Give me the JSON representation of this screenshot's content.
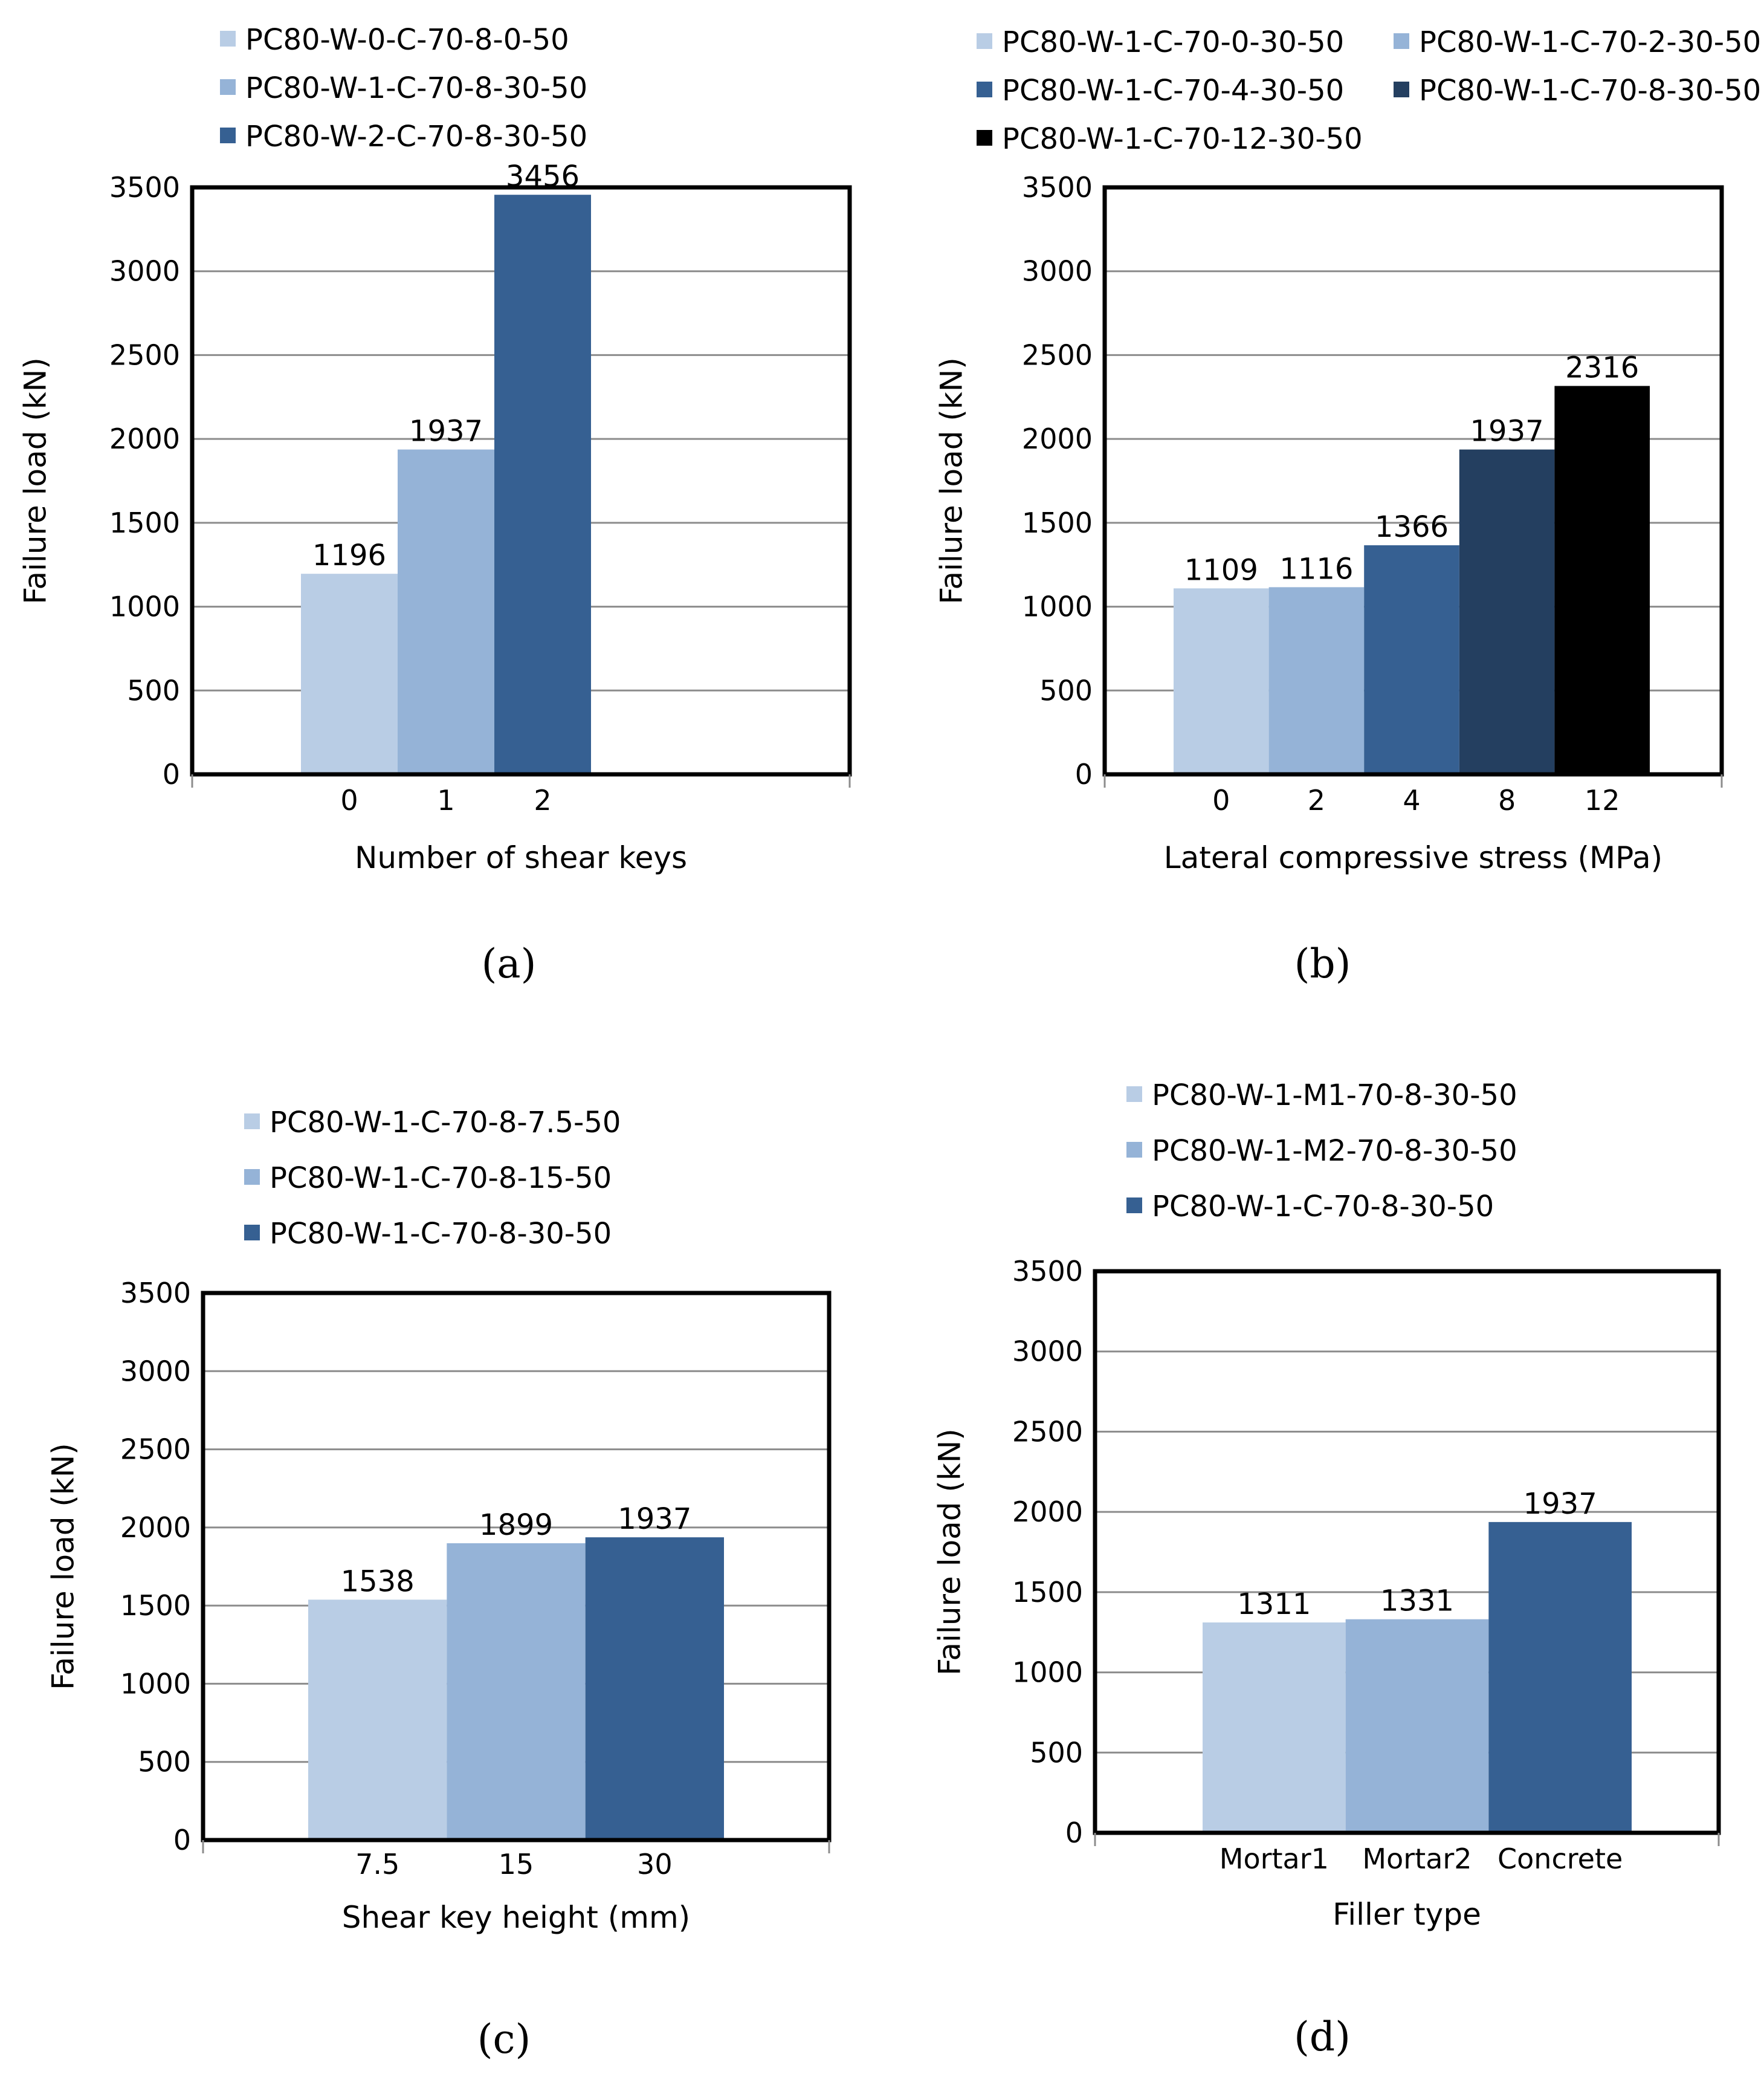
{
  "chart_data": [
    {
      "panel": "a",
      "type": "bar",
      "caption": "(a)",
      "xlabel": "Number of shear keys",
      "ylabel": "Failure load (kN)",
      "ylim": [
        0,
        3500
      ],
      "yticks": [
        0,
        500,
        1000,
        1500,
        2000,
        2500,
        3000,
        3500
      ],
      "categories": [
        "0",
        "1",
        "2"
      ],
      "values": [
        1196,
        1937,
        3456
      ],
      "value_labels": [
        "1196",
        "1937",
        "3456"
      ],
      "legend": [
        "PC80-W-0-C-70-8-0-50",
        "PC80-W-1-C-70-8-30-50",
        "PC80-W-2-C-70-8-30-50"
      ],
      "colors": [
        "#b9cde5",
        "#95b3d7",
        "#366092"
      ],
      "grid": true,
      "legend_position": "top"
    },
    {
      "panel": "b",
      "type": "bar",
      "caption": "(b)",
      "xlabel": "Lateral compressive stress (MPa)",
      "ylabel": "Failure load (kN)",
      "ylim": [
        0,
        3500
      ],
      "yticks": [
        0,
        500,
        1000,
        1500,
        2000,
        2500,
        3000,
        3500
      ],
      "categories": [
        "0",
        "2",
        "4",
        "8",
        "12"
      ],
      "values": [
        1109,
        1116,
        1366,
        1937,
        2316
      ],
      "value_labels": [
        "1109",
        "1116",
        "1366",
        "1937",
        "2316"
      ],
      "legend": [
        "PC80-W-1-C-70-0-30-50",
        "PC80-W-1-C-70-2-30-50",
        "PC80-W-1-C-70-4-30-50",
        "PC80-W-1-C-70-8-30-50",
        "PC80-W-1-C-70-12-30-50"
      ],
      "colors": [
        "#b9cde5",
        "#95b3d7",
        "#366092",
        "#243f60",
        "#000000"
      ],
      "grid": true,
      "legend_position": "top"
    },
    {
      "panel": "c",
      "type": "bar",
      "caption": "(c)",
      "xlabel": "Shear key height (mm)",
      "ylabel": "Failure load (kN)",
      "ylim": [
        0,
        3500
      ],
      "yticks": [
        0,
        500,
        1000,
        1500,
        2000,
        2500,
        3000,
        3500
      ],
      "categories": [
        "7.5",
        "15",
        "30"
      ],
      "values": [
        1538,
        1899,
        1937
      ],
      "value_labels": [
        "1538",
        "1899",
        "1937"
      ],
      "legend": [
        "PC80-W-1-C-70-8-7.5-50",
        "PC80-W-1-C-70-8-15-50",
        "PC80-W-1-C-70-8-30-50"
      ],
      "colors": [
        "#b9cde5",
        "#95b3d7",
        "#366092"
      ],
      "grid": true,
      "legend_position": "top"
    },
    {
      "panel": "d",
      "type": "bar",
      "caption": "(d)",
      "xlabel": "Filler type",
      "ylabel": "Failure load (kN)",
      "ylim": [
        0,
        3500
      ],
      "yticks": [
        0,
        500,
        1000,
        1500,
        2000,
        2500,
        3000,
        3500
      ],
      "categories": [
        "Mortar1",
        "Mortar2",
        "Concrete"
      ],
      "values": [
        1311,
        1331,
        1937
      ],
      "value_labels": [
        "1311",
        "1331",
        "1937"
      ],
      "legend": [
        "PC80-W-1-M1-70-8-30-50",
        "PC80-W-1-M2-70-8-30-50",
        "PC80-W-1-C-70-8-30-50"
      ],
      "colors": [
        "#b9cde5",
        "#95b3d7",
        "#366092"
      ],
      "grid": true,
      "legend_position": "top"
    }
  ]
}
